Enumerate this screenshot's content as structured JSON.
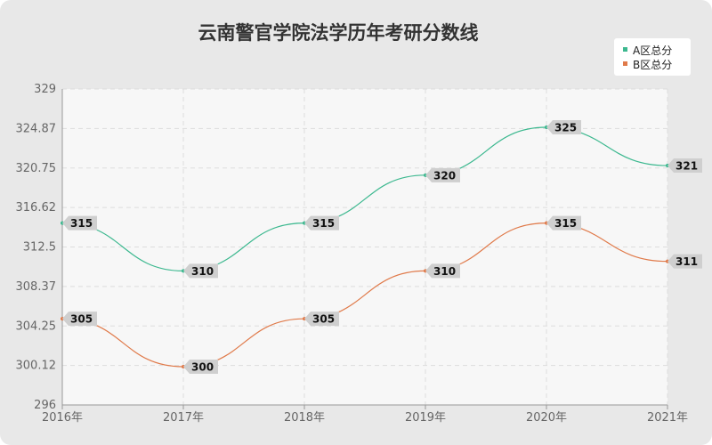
{
  "chart_data": {
    "type": "line",
    "title": "云南警官学院法学历年考研分数线",
    "categories": [
      "2016年",
      "2017年",
      "2018年",
      "2019年",
      "2020年",
      "2021年"
    ],
    "ylim": [
      296,
      329
    ],
    "yticks": [
      "296",
      "300.12",
      "304.25",
      "308.37",
      "312.5",
      "316.62",
      "320.75",
      "324.87",
      "329"
    ],
    "grid": true,
    "legend_position": "top-right",
    "series": [
      {
        "name": "A区总分",
        "color": "#3cb88f",
        "values": [
          315,
          310,
          315,
          320,
          325,
          321
        ]
      },
      {
        "name": "B区总分",
        "color": "#e07a4a",
        "values": [
          305,
          300,
          305,
          310,
          315,
          311
        ]
      }
    ]
  }
}
